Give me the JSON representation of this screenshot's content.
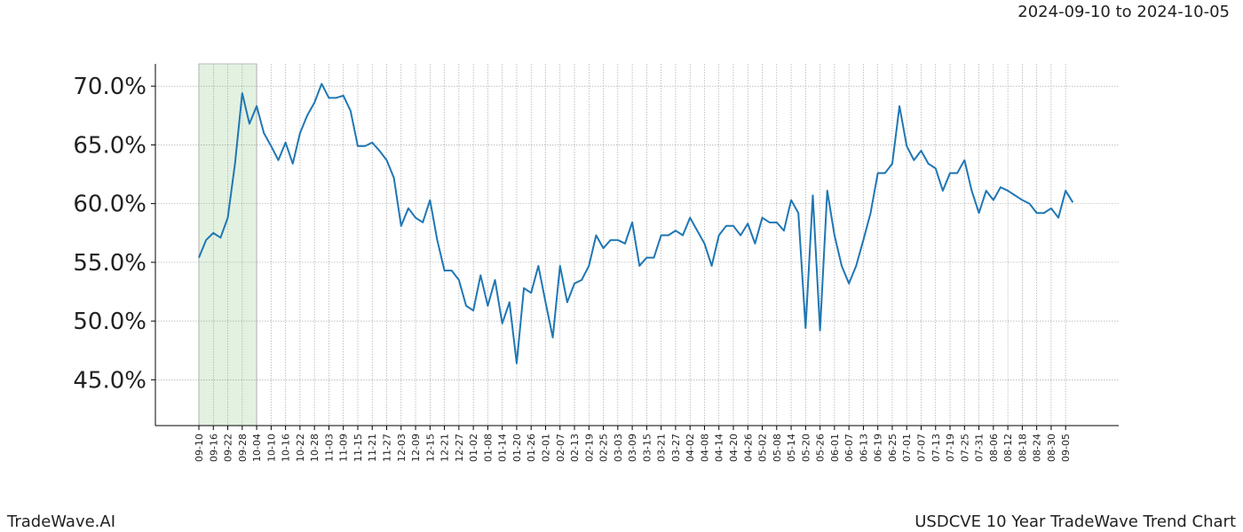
{
  "chart_data": {
    "type": "line",
    "title": "2024-09-10 to 2024-10-05",
    "brand": "TradeWave.AI",
    "footer": "USDCVE 10 Year TradeWave Trend Chart",
    "color": "#1f77b4",
    "highlight": [
      "09-10",
      "10-04"
    ],
    "highlight_color": "#e3f1e1",
    "grid": true,
    "categories": [
      "09-10",
      null,
      "09-16",
      null,
      "09-22",
      null,
      "09-28",
      null,
      "10-04",
      null,
      "10-10",
      null,
      "10-16",
      null,
      "10-22",
      null,
      "10-28",
      null,
      "11-03",
      null,
      "11-09",
      null,
      "11-15",
      null,
      "11-21",
      null,
      "11-27",
      null,
      "12-03",
      null,
      "12-09",
      null,
      "12-15",
      null,
      "12-21",
      null,
      "12-27",
      null,
      "01-02",
      null,
      "01-08",
      null,
      "01-14",
      null,
      "01-20",
      null,
      "01-26",
      null,
      "02-01",
      null,
      "02-07",
      null,
      "02-13",
      null,
      "02-19",
      null,
      "02-25",
      null,
      "03-03",
      null,
      "03-09",
      null,
      "03-15",
      null,
      "03-21",
      null,
      "03-27",
      null,
      "04-02",
      null,
      "04-08",
      null,
      "04-14",
      null,
      "04-20",
      null,
      "04-26",
      null,
      "05-02",
      null,
      "05-08",
      null,
      "05-14",
      null,
      "05-20",
      null,
      "05-26",
      null,
      "06-01",
      null,
      "06-07",
      null,
      "06-13",
      null,
      "06-19",
      null,
      "06-25",
      null,
      "07-01",
      null,
      "07-07",
      null,
      "07-13",
      null,
      "07-19",
      null,
      "07-25",
      null,
      "07-31",
      null,
      "08-06",
      null,
      "08-12",
      null,
      "08-18",
      null,
      "08-24",
      null,
      "08-30",
      null,
      "09-05",
      null
    ],
    "values": [
      55.4,
      56.9,
      57.5,
      57.1,
      58.8,
      63.4,
      69.4,
      66.8,
      68.3,
      66.0,
      64.9,
      63.7,
      65.2,
      63.4,
      66.0,
      67.5,
      68.6,
      70.2,
      69.0,
      69.0,
      69.2,
      67.9,
      64.9,
      64.9,
      65.2,
      64.5,
      63.7,
      62.2,
      58.1,
      59.6,
      58.8,
      58.4,
      60.3,
      56.9,
      54.3,
      54.3,
      53.5,
      51.3,
      50.9,
      53.9,
      51.3,
      53.5,
      49.8,
      51.6,
      46.4,
      52.8,
      52.4,
      54.7,
      51.6,
      48.6,
      54.7,
      51.6,
      53.2,
      53.5,
      54.7,
      57.3,
      56.2,
      56.9,
      56.9,
      56.6,
      58.4,
      54.7,
      55.4,
      55.4,
      57.3,
      57.3,
      57.7,
      57.3,
      58.8,
      57.7,
      56.6,
      54.7,
      57.3,
      58.1,
      58.1,
      57.3,
      58.3,
      56.6,
      58.8,
      58.4,
      58.4,
      57.7,
      60.3,
      59.2,
      49.4,
      60.7,
      49.2,
      61.1,
      57.3,
      54.7,
      53.2,
      54.7,
      56.9,
      59.2,
      62.6,
      62.6,
      63.4,
      68.3,
      64.9,
      63.7,
      64.5,
      63.4,
      63.0,
      61.1,
      62.6,
      62.6,
      63.7,
      61.1,
      59.2,
      61.1,
      60.3,
      61.4,
      61.1,
      60.7,
      60.3,
      60.0,
      59.2,
      59.2,
      59.6,
      58.8,
      61.1,
      60.1
    ],
    "ylim": [
      41.1,
      71.9
    ],
    "yticks": [
      {
        "value": 45,
        "label": "45.0%"
      },
      {
        "value": 50,
        "label": "50.0%"
      },
      {
        "value": 55,
        "label": "55.0%"
      },
      {
        "value": 60,
        "label": "60.0%"
      },
      {
        "value": 65,
        "label": "65.0%"
      },
      {
        "value": 70,
        "label": "70.0%"
      }
    ]
  }
}
